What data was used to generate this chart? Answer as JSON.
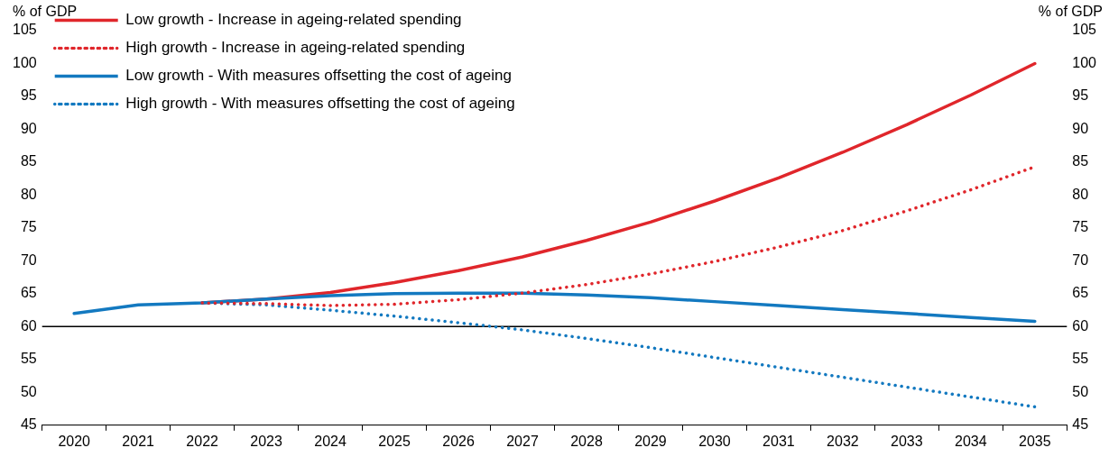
{
  "chart_data": {
    "type": "line",
    "ylabel": "% of GDP",
    "y2label": "% of GDP",
    "categories": [
      "2020",
      "2021",
      "2022",
      "2023",
      "2024",
      "2025",
      "2026",
      "2027",
      "2028",
      "2029",
      "2030",
      "2031",
      "2032",
      "2033",
      "2034",
      "2035"
    ],
    "series": [
      {
        "name": "Low growth - Increase in ageing-related spending",
        "color": "#e0262b",
        "line_style": "solid",
        "values": [
          null,
          null,
          63.6,
          64.2,
          65.2,
          66.7,
          68.5,
          70.6,
          73.1,
          75.9,
          79.1,
          82.6,
          86.5,
          90.7,
          95.2,
          100
        ]
      },
      {
        "name": "High growth - Increase in ageing-related spending",
        "color": "#e0262b",
        "line_style": "dotted",
        "values": [
          null,
          null,
          63.6,
          63.5,
          63.2,
          63.4,
          64.1,
          65.1,
          66.4,
          68,
          69.9,
          72.1,
          74.6,
          77.6,
          80.8,
          84.3
        ]
      },
      {
        "name": "Low growth - With measures offsetting the cost of ageing",
        "color": "#1379c0",
        "line_style": "solid",
        "values": [
          62,
          63.3,
          63.6,
          64.2,
          64.7,
          65,
          65.1,
          65.1,
          64.8,
          64.4,
          63.8,
          63.2,
          62.6,
          62,
          61.4,
          60.8
        ]
      },
      {
        "name": "High growth - With measures offsetting the cost of ageing",
        "color": "#1379c0",
        "line_style": "dotted",
        "values": [
          null,
          null,
          63.6,
          63.3,
          62.5,
          61.6,
          60.6,
          59.5,
          58.2,
          56.8,
          55.3,
          53.8,
          52.3,
          50.8,
          49.3,
          47.8
        ]
      }
    ],
    "ylim": [
      45,
      105
    ],
    "yticks": [
      45,
      50,
      55,
      60,
      65,
      70,
      75,
      80,
      85,
      90,
      95,
      100,
      105
    ],
    "y2lim": [
      45,
      105
    ],
    "y2ticks": [
      45,
      50,
      55,
      60,
      65,
      70,
      75,
      80,
      85,
      90,
      95,
      100,
      105
    ],
    "ref_lines": [
      {
        "axis": "y",
        "value": 60,
        "color": "#000000"
      }
    ],
    "grid": false,
    "legend": "top left",
    "marker": "none"
  }
}
